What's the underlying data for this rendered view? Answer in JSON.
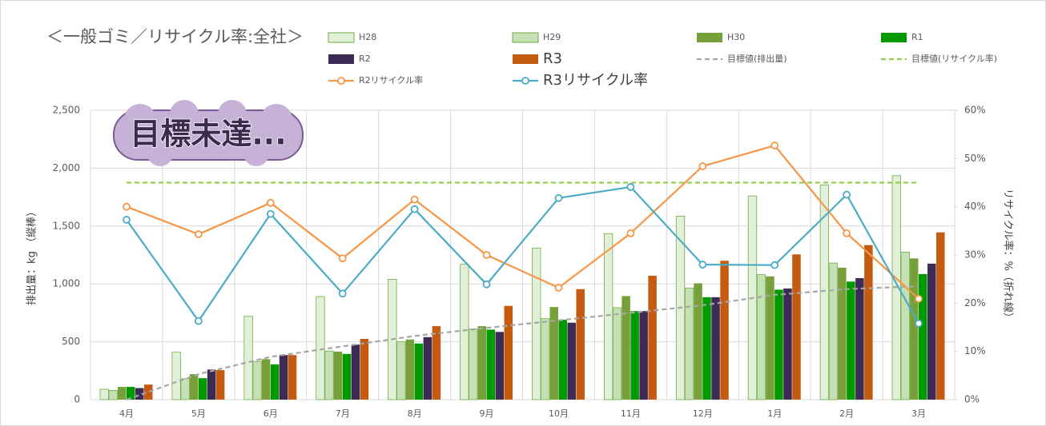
{
  "chart_data": {
    "type": "bar",
    "title": "＜一般ゴミ／リサイクル率:全社＞",
    "annotation": "目標未達...",
    "ylabel": "排出量：kg （縦棒）",
    "y2label": "リサイクル率：%（折れ線）",
    "categories": [
      "4月",
      "5月",
      "6月",
      "7月",
      "8月",
      "9月",
      "10月",
      "11月",
      "12月",
      "1月",
      "2月",
      "3月"
    ],
    "ylim": [
      0,
      2500
    ],
    "yticks": [
      0,
      500,
      {
        "value": 1000,
        "label": "1,000"
      },
      {
        "value": 1500,
        "label": "1,500"
      },
      {
        "value": 2000,
        "label": "2,000"
      },
      {
        "value": 2500,
        "label": "2,500"
      }
    ],
    "y2lim": [
      0,
      60
    ],
    "y2ticks": [
      {
        "value": 0,
        "label": "0%"
      },
      {
        "value": 10,
        "label": "10%"
      },
      {
        "value": 20,
        "label": "20%"
      },
      {
        "value": 30,
        "label": "30%"
      },
      {
        "value": 40,
        "label": "40%"
      },
      {
        "value": 50,
        "label": "50%"
      },
      {
        "value": 60,
        "label": "60%"
      }
    ],
    "grid": true,
    "series": [
      {
        "name": "H28",
        "type": "bar",
        "color": "#e2efd9",
        "edgecolor": "#70ad47",
        "values": [
          90,
          410,
          720,
          890,
          1040,
          1170,
          1310,
          1435,
          1585,
          1760,
          1855,
          1935
        ]
      },
      {
        "name": "H29",
        "type": "bar",
        "color": "#c5e0b4",
        "edgecolor": "#70ad47",
        "values": [
          80,
          180,
          330,
          420,
          500,
          610,
          700,
          795,
          965,
          1080,
          1180,
          1275
        ]
      },
      {
        "name": "H30",
        "type": "bar",
        "color": "#77a03a",
        "values": [
          110,
          220,
          350,
          415,
          520,
          635,
          800,
          895,
          1005,
          1065,
          1140,
          1220
        ]
      },
      {
        "name": "R1",
        "type": "bar",
        "color": "#009a00",
        "values": [
          110,
          185,
          305,
          395,
          485,
          605,
          690,
          765,
          885,
          950,
          1020,
          1085
        ]
      },
      {
        "name": "R2",
        "type": "bar",
        "color": "#3d2b56",
        "values": [
          100,
          260,
          385,
          475,
          540,
          585,
          665,
          765,
          885,
          960,
          1050,
          1175
        ]
      },
      {
        "name": "R3",
        "type": "bar",
        "color": "#c55a11",
        "values": [
          130,
          255,
          385,
          525,
          635,
          810,
          955,
          1070,
          1200,
          1255,
          1335,
          1445
        ]
      },
      {
        "name": "目標値(排出量)",
        "type": "dashed",
        "color": "#a6a6a6",
        "values": [
          0,
          220,
          370,
          460,
          550,
          620,
          685,
          750,
          815,
          905,
          955,
          980
        ]
      },
      {
        "name": "目標値(リサイクル率)",
        "type": "dashed",
        "axis": "y2",
        "color": "#92d050",
        "values": [
          45,
          45,
          45,
          45,
          45,
          45,
          45,
          45,
          45,
          45,
          45,
          45
        ]
      },
      {
        "name": "R2リサイクル率",
        "type": "line",
        "axis": "y2",
        "color": "#f79646",
        "values": [
          40,
          34.3,
          40.8,
          29.3,
          41.5,
          30,
          23.2,
          34.5,
          48.4,
          52.7,
          34.5,
          20.9
        ]
      },
      {
        "name": "R3リサイクル率",
        "type": "line",
        "axis": "y2",
        "color": "#4bacc6",
        "values": [
          37.3,
          16.3,
          38.5,
          22,
          39.5,
          23.9,
          41.8,
          44.1,
          28,
          27.9,
          42.5,
          15.8
        ]
      }
    ]
  }
}
